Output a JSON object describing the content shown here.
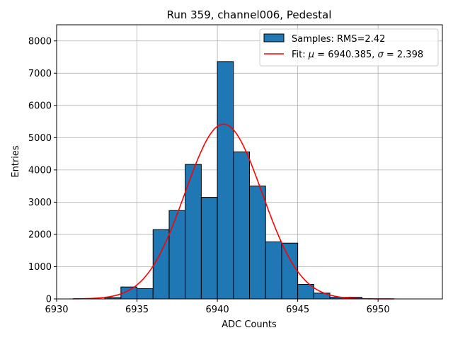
{
  "chart_data": {
    "type": "bar",
    "title": "Run 359, channel006, Pedestal",
    "xlabel": "ADC Counts",
    "ylabel": "Entries",
    "xlim": [
      6930,
      6954
    ],
    "ylim": [
      0,
      8500
    ],
    "xticks": [
      6930,
      6935,
      6940,
      6945,
      6950
    ],
    "yticks": [
      0,
      1000,
      2000,
      3000,
      4000,
      5000,
      6000,
      7000,
      8000
    ],
    "grid": true,
    "legend_position": "top-right",
    "colors": {
      "bar_fill": "#1f77b4",
      "bar_edge": "#000000",
      "fit_line": "#ff0000",
      "grid": "#b0b0b0"
    },
    "histogram": {
      "name": "Samples: RMS=2.42",
      "bin_edges": [
        6933,
        6934,
        6935,
        6936,
        6937,
        6938,
        6939,
        6940,
        6941,
        6942,
        6943,
        6944,
        6945,
        6946,
        6947,
        6948,
        6949
      ],
      "counts": [
        40,
        370,
        320,
        2150,
        2740,
        4170,
        3150,
        7360,
        4560,
        3500,
        1770,
        1730,
        450,
        180,
        50,
        50
      ]
    },
    "fit": {
      "mu_text": "6940.385",
      "sigma_text": "2.398",
      "mu": 6940.385,
      "sigma": 2.398,
      "amplitude": 5420,
      "x_range": [
        6931,
        6951
      ]
    },
    "legend": [
      {
        "label": "Samples: RMS=2.42",
        "kind": "patch"
      },
      {
        "label_prefix": "Fit: ",
        "mu_symbol": "μ",
        "eq1": " = 6940.385, ",
        "sigma_symbol": "σ",
        "eq2": " = 2.398",
        "kind": "line"
      }
    ]
  }
}
